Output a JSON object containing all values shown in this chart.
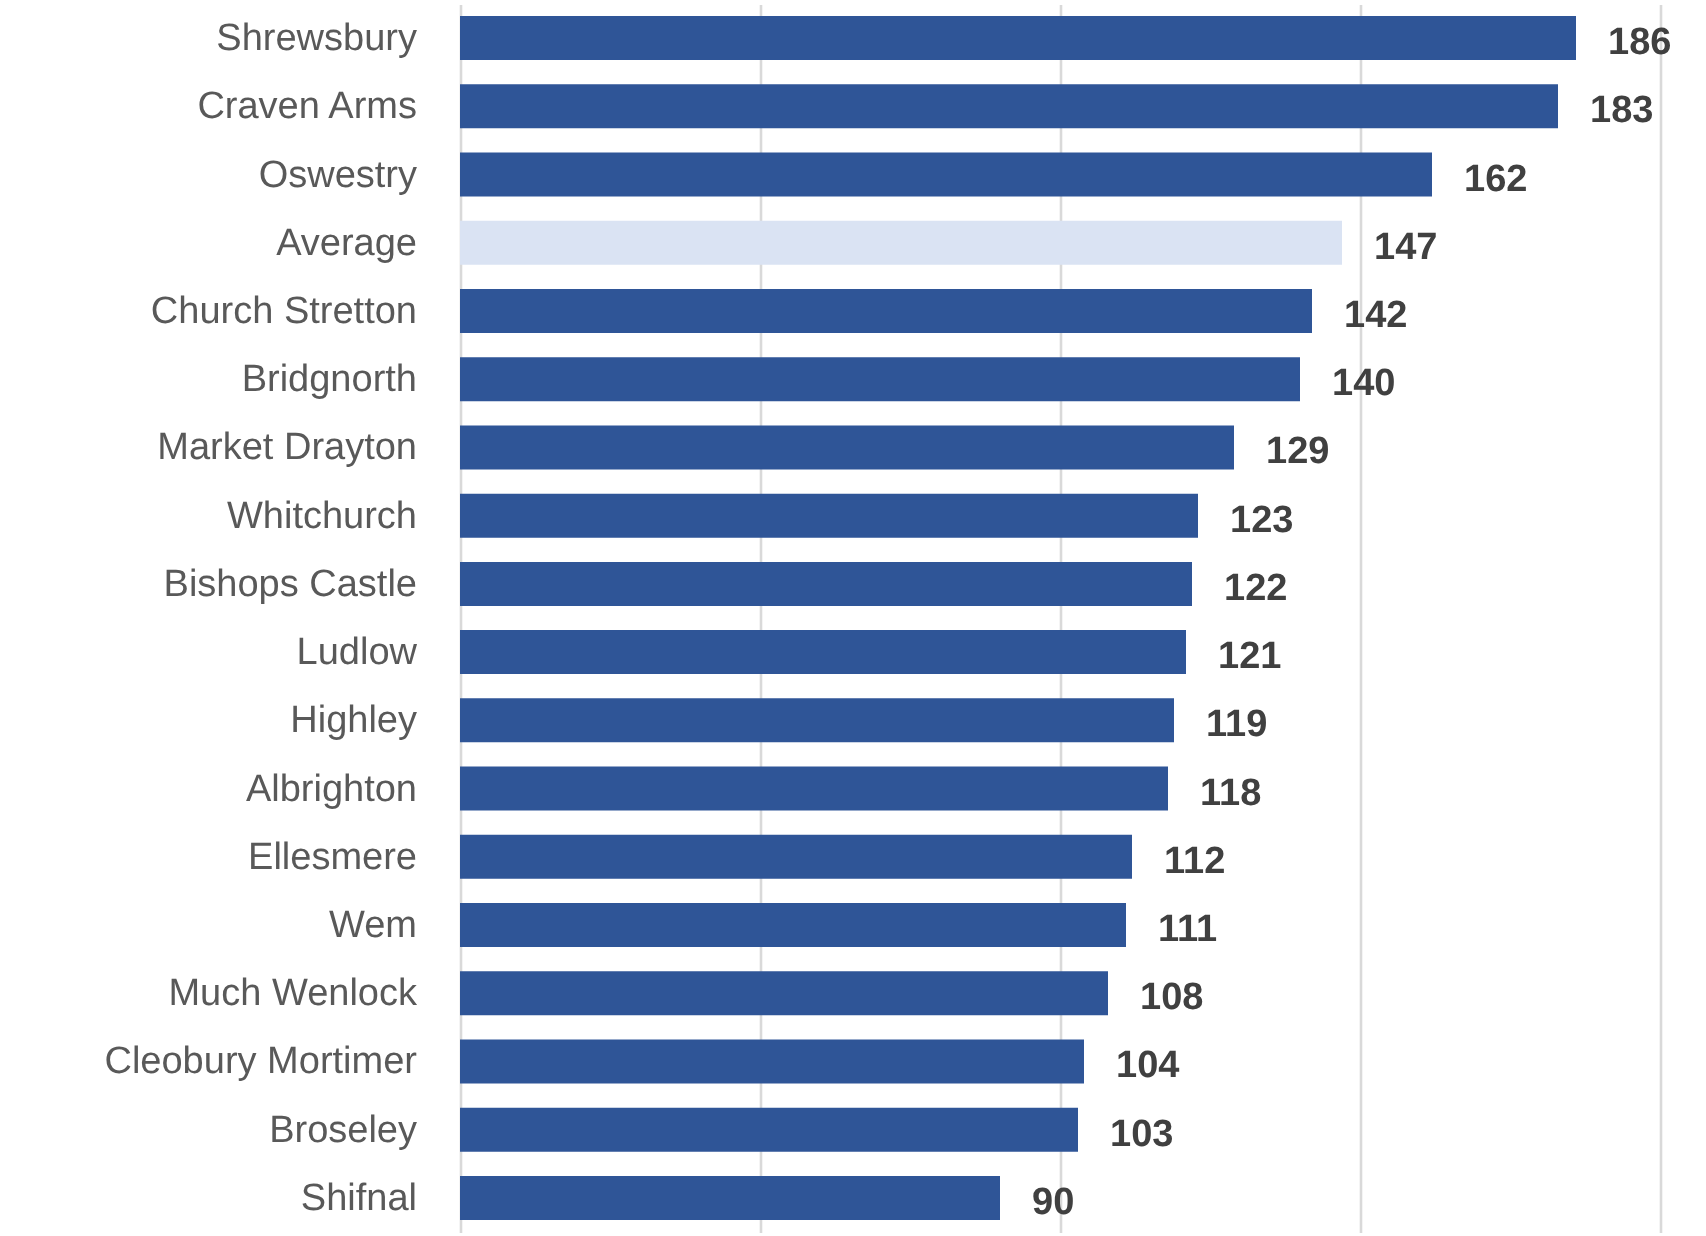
{
  "chart_data": {
    "type": "bar",
    "orientation": "horizontal",
    "categories": [
      "Shrewsbury",
      "Craven Arms",
      "Oswestry",
      "Average",
      "Church Stretton",
      "Bridgnorth",
      "Market Drayton",
      "Whitchurch",
      "Bishops Castle",
      "Ludlow",
      "Highley",
      "Albrighton",
      "Ellesmere",
      "Wem",
      "Much Wenlock",
      "Cleobury Mortimer",
      "Broseley",
      "Shifnal"
    ],
    "values": [
      186,
      183,
      162,
      147,
      142,
      140,
      129,
      123,
      122,
      121,
      119,
      118,
      112,
      111,
      108,
      104,
      103,
      90
    ],
    "colors": [
      "#2f5597",
      "#2f5597",
      "#2f5597",
      "#dae3f3",
      "#2f5597",
      "#2f5597",
      "#2f5597",
      "#2f5597",
      "#2f5597",
      "#2f5597",
      "#2f5597",
      "#2f5597",
      "#2f5597",
      "#2f5597",
      "#2f5597",
      "#2f5597",
      "#2f5597",
      "#2f5597"
    ],
    "xlim": [
      0,
      200
    ],
    "xticks": [
      {
        "value": 0,
        "label": null
      },
      {
        "value": 50,
        "label": null
      },
      {
        "value": 100,
        "label": null
      },
      {
        "value": 150,
        "label": null
      },
      {
        "value": 200,
        "label": null
      }
    ],
    "tick_labels": "y",
    "grid": "x",
    "data_labels": true
  }
}
